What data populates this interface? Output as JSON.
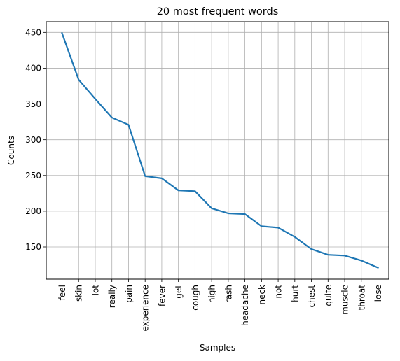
{
  "chart_data": {
    "type": "line",
    "title": "20 most frequent words",
    "xlabel": "Samples",
    "ylabel": "Counts",
    "categories": [
      "feel",
      "skin",
      "lot",
      "really",
      "pain",
      "experience",
      "fever",
      "get",
      "cough",
      "high",
      "rash",
      "headache",
      "neck",
      "not",
      "hurt",
      "chest",
      "quite",
      "muscle",
      "throat",
      "lose"
    ],
    "values": [
      449,
      384,
      357,
      331,
      321,
      249,
      246,
      229,
      228,
      204,
      197,
      196,
      179,
      177,
      164,
      147,
      139,
      138,
      131,
      121
    ],
    "yticks": [
      150,
      200,
      250,
      300,
      350,
      400,
      450
    ],
    "ylim": [
      105,
      465
    ],
    "grid": true,
    "line_color": "#1f77b4"
  }
}
